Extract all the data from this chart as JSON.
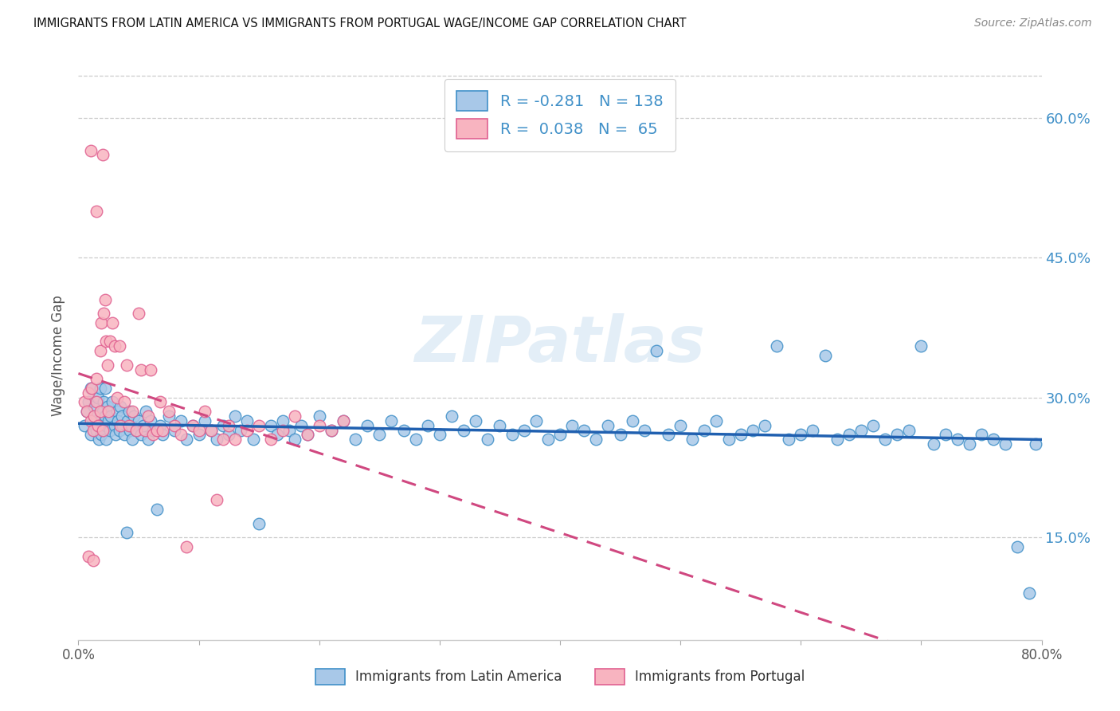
{
  "title": "IMMIGRANTS FROM LATIN AMERICA VS IMMIGRANTS FROM PORTUGAL WAGE/INCOME GAP CORRELATION CHART",
  "source": "Source: ZipAtlas.com",
  "ylabel": "Wage/Income Gap",
  "watermark": "ZIPatlas",
  "legend_label_blue": "Immigrants from Latin America",
  "legend_label_pink": "Immigrants from Portugal",
  "blue_color": "#a8c8e8",
  "pink_color": "#f8b4c0",
  "blue_edge_color": "#4090c8",
  "pink_edge_color": "#e06090",
  "blue_line_color": "#2060b0",
  "pink_line_color": "#d04880",
  "right_tick_color": "#4090c8",
  "yticks_right": [
    "60.0%",
    "45.0%",
    "30.0%",
    "15.0%"
  ],
  "yticks_right_vals": [
    0.6,
    0.45,
    0.3,
    0.15
  ],
  "xmin": 0.0,
  "xmax": 0.8,
  "ymin": 0.04,
  "ymax": 0.65,
  "blue_scatter_x": [
    0.005,
    0.007,
    0.008,
    0.01,
    0.01,
    0.012,
    0.013,
    0.015,
    0.015,
    0.016,
    0.017,
    0.018,
    0.018,
    0.019,
    0.02,
    0.02,
    0.021,
    0.021,
    0.022,
    0.022,
    0.023,
    0.023,
    0.024,
    0.025,
    0.026,
    0.027,
    0.028,
    0.03,
    0.031,
    0.032,
    0.033,
    0.034,
    0.035,
    0.036,
    0.037,
    0.038,
    0.04,
    0.041,
    0.042,
    0.043,
    0.044,
    0.045,
    0.046,
    0.048,
    0.05,
    0.052,
    0.054,
    0.056,
    0.058,
    0.06,
    0.062,
    0.065,
    0.068,
    0.07,
    0.075,
    0.08,
    0.085,
    0.09,
    0.095,
    0.1,
    0.105,
    0.11,
    0.115,
    0.12,
    0.125,
    0.13,
    0.135,
    0.14,
    0.145,
    0.15,
    0.16,
    0.165,
    0.17,
    0.175,
    0.18,
    0.185,
    0.19,
    0.2,
    0.21,
    0.22,
    0.23,
    0.24,
    0.25,
    0.26,
    0.27,
    0.28,
    0.29,
    0.3,
    0.31,
    0.32,
    0.33,
    0.34,
    0.35,
    0.36,
    0.37,
    0.38,
    0.39,
    0.4,
    0.41,
    0.42,
    0.43,
    0.44,
    0.45,
    0.46,
    0.47,
    0.48,
    0.49,
    0.5,
    0.51,
    0.52,
    0.53,
    0.54,
    0.55,
    0.56,
    0.57,
    0.58,
    0.59,
    0.6,
    0.61,
    0.62,
    0.63,
    0.64,
    0.65,
    0.66,
    0.67,
    0.68,
    0.69,
    0.7,
    0.71,
    0.72,
    0.73,
    0.74,
    0.75,
    0.76,
    0.77,
    0.78,
    0.79,
    0.795
  ],
  "blue_scatter_y": [
    0.27,
    0.285,
    0.295,
    0.31,
    0.26,
    0.275,
    0.29,
    0.28,
    0.265,
    0.3,
    0.255,
    0.31,
    0.275,
    0.26,
    0.285,
    0.27,
    0.295,
    0.265,
    0.28,
    0.31,
    0.27,
    0.255,
    0.29,
    0.275,
    0.265,
    0.28,
    0.295,
    0.27,
    0.26,
    0.285,
    0.275,
    0.265,
    0.29,
    0.28,
    0.27,
    0.26,
    0.155,
    0.275,
    0.285,
    0.265,
    0.27,
    0.255,
    0.28,
    0.265,
    0.275,
    0.26,
    0.27,
    0.285,
    0.255,
    0.275,
    0.265,
    0.18,
    0.27,
    0.26,
    0.28,
    0.265,
    0.275,
    0.255,
    0.27,
    0.26,
    0.275,
    0.265,
    0.255,
    0.27,
    0.26,
    0.28,
    0.265,
    0.275,
    0.255,
    0.165,
    0.27,
    0.26,
    0.275,
    0.265,
    0.255,
    0.27,
    0.26,
    0.28,
    0.265,
    0.275,
    0.255,
    0.27,
    0.26,
    0.275,
    0.265,
    0.255,
    0.27,
    0.26,
    0.28,
    0.265,
    0.275,
    0.255,
    0.27,
    0.26,
    0.265,
    0.275,
    0.255,
    0.26,
    0.27,
    0.265,
    0.255,
    0.27,
    0.26,
    0.275,
    0.265,
    0.35,
    0.26,
    0.27,
    0.255,
    0.265,
    0.275,
    0.255,
    0.26,
    0.265,
    0.27,
    0.355,
    0.255,
    0.26,
    0.265,
    0.345,
    0.255,
    0.26,
    0.265,
    0.27,
    0.255,
    0.26,
    0.265,
    0.355,
    0.25,
    0.26,
    0.255,
    0.25,
    0.26,
    0.255,
    0.25,
    0.14,
    0.09,
    0.25
  ],
  "pink_scatter_x": [
    0.005,
    0.007,
    0.008,
    0.01,
    0.011,
    0.012,
    0.013,
    0.015,
    0.015,
    0.016,
    0.018,
    0.018,
    0.019,
    0.02,
    0.021,
    0.022,
    0.023,
    0.024,
    0.025,
    0.026,
    0.028,
    0.03,
    0.032,
    0.034,
    0.035,
    0.038,
    0.04,
    0.042,
    0.045,
    0.048,
    0.05,
    0.052,
    0.055,
    0.058,
    0.06,
    0.062,
    0.065,
    0.068,
    0.07,
    0.075,
    0.08,
    0.085,
    0.09,
    0.095,
    0.1,
    0.105,
    0.11,
    0.115,
    0.12,
    0.125,
    0.13,
    0.14,
    0.15,
    0.16,
    0.17,
    0.18,
    0.19,
    0.2,
    0.21,
    0.22,
    0.01,
    0.015,
    0.008,
    0.012,
    0.02
  ],
  "pink_scatter_y": [
    0.295,
    0.285,
    0.305,
    0.275,
    0.31,
    0.265,
    0.28,
    0.295,
    0.32,
    0.27,
    0.285,
    0.35,
    0.38,
    0.265,
    0.39,
    0.405,
    0.36,
    0.335,
    0.285,
    0.36,
    0.38,
    0.355,
    0.3,
    0.355,
    0.27,
    0.295,
    0.335,
    0.27,
    0.285,
    0.265,
    0.39,
    0.33,
    0.265,
    0.28,
    0.33,
    0.26,
    0.265,
    0.295,
    0.265,
    0.285,
    0.27,
    0.26,
    0.14,
    0.27,
    0.265,
    0.285,
    0.265,
    0.19,
    0.255,
    0.27,
    0.255,
    0.265,
    0.27,
    0.255,
    0.265,
    0.28,
    0.26,
    0.27,
    0.265,
    0.275,
    0.565,
    0.5,
    0.13,
    0.125,
    0.56
  ]
}
